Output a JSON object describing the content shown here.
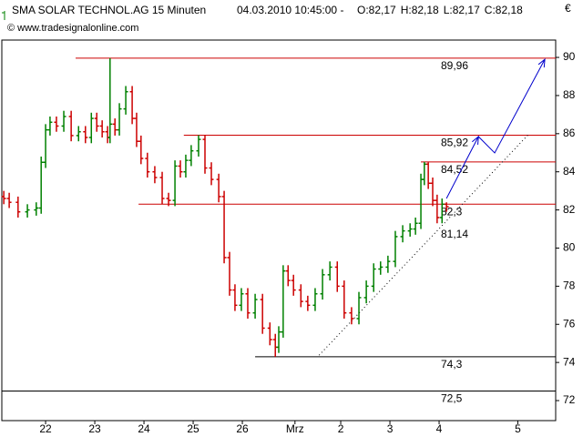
{
  "chart_data": {
    "type": "ohlc",
    "title": "SMA SOLAR TECHNOL.AG 15 Minuten",
    "timestamp": "04.03.2010 10:45:00 -",
    "quote": [
      {
        "text": "O:82,17",
        "color": "#cc0000"
      },
      {
        "text": "H:82,18",
        "color": "#000000"
      },
      {
        "text": "L:82,17",
        "color": "#000000"
      },
      {
        "text": "C:82,18",
        "color": "#cc0000"
      }
    ],
    "source": "© www.tradesignalonline.com",
    "currency": "€",
    "up_color": "#008000",
    "down_color": "#cc0000",
    "xlim": [
      -0.89,
      10.37
    ],
    "ylim": [
      70.95,
      90.91
    ],
    "yticks": [
      72,
      74,
      76,
      78,
      80,
      82,
      84,
      86,
      88,
      90
    ],
    "xticks": [
      {
        "value": 0,
        "label": "22"
      },
      {
        "value": 1,
        "label": "23"
      },
      {
        "value": 2,
        "label": "24"
      },
      {
        "value": 3,
        "label": "25"
      },
      {
        "value": 4,
        "label": "26"
      },
      {
        "value": 5.07,
        "label": "Mrz"
      },
      {
        "value": 6,
        "label": "2"
      },
      {
        "value": 7,
        "label": "3"
      },
      {
        "value": 8,
        "label": "4"
      },
      {
        "value": 9.6,
        "label": "5"
      }
    ],
    "x": [
      -0.85,
      -0.74,
      -0.56,
      -0.37,
      -0.19,
      -0.09,
      0,
      0.09,
      0.22,
      0.37,
      0.52,
      0.67,
      0.81,
      0.93,
      1.04,
      1.15,
      1.26,
      1.31,
      1.41,
      1.5,
      1.63,
      1.76,
      1.85,
      1.94,
      2.07,
      2.22,
      2.37,
      2.5,
      2.63,
      2.74,
      2.85,
      2.96,
      3.11,
      3.24,
      3.37,
      3.52,
      3.63,
      3.74,
      3.85,
      3.98,
      4.11,
      4.26,
      4.41,
      4.56,
      4.67,
      4.74,
      4.83,
      4.93,
      5.04,
      5.19,
      5.33,
      5.48,
      5.63,
      5.78,
      5.93,
      6.07,
      6.22,
      6.37,
      6.52,
      6.67,
      6.81,
      6.96,
      7.11,
      7.26,
      7.41,
      7.52,
      7.63,
      7.7,
      7.78,
      7.87,
      7.96,
      8.06,
      8.15
    ],
    "open": [
      82.7,
      82.6,
      82.4,
      81.9,
      82.0,
      82.1,
      84.5,
      86.2,
      86.6,
      86.4,
      86.9,
      85.9,
      86.1,
      85.8,
      86.8,
      86.4,
      86.1,
      85.8,
      86.5,
      86.2,
      87.3,
      88.2,
      86.8,
      85.6,
      84.7,
      84.0,
      83.7,
      82.6,
      82.5,
      84.3,
      84.0,
      84.6,
      85.1,
      85.7,
      84.2,
      83.6,
      82.7,
      79.5,
      77.8,
      77.0,
      77.6,
      76.6,
      77.3,
      75.8,
      75.2,
      74.8,
      75.6,
      78.8,
      78.3,
      77.8,
      77.2,
      77.0,
      77.6,
      78.6,
      79.0,
      78.0,
      76.6,
      76.3,
      77.4,
      78.0,
      78.9,
      79.0,
      79.3,
      80.6,
      80.9,
      81.0,
      81.3,
      83.6,
      84.4,
      83.4,
      82.5,
      81.6,
      82.3
    ],
    "high": [
      83.0,
      82.9,
      82.7,
      82.3,
      82.4,
      84.8,
      86.5,
      86.9,
      86.9,
      87.2,
      87.2,
      86.4,
      86.4,
      87.1,
      87.1,
      86.7,
      86.4,
      89.96,
      86.8,
      87.6,
      88.5,
      88.5,
      87.1,
      85.9,
      85.0,
      84.3,
      84.0,
      82.9,
      84.6,
      84.6,
      84.9,
      85.4,
      85.92,
      85.9,
      84.5,
      83.9,
      83.0,
      79.8,
      78.1,
      77.9,
      77.9,
      77.6,
      77.6,
      76.1,
      75.5,
      75.9,
      79.1,
      79.1,
      78.6,
      78.1,
      77.5,
      77.9,
      78.9,
      79.3,
      79.3,
      78.3,
      76.9,
      77.7,
      78.3,
      79.2,
      79.3,
      79.6,
      80.9,
      81.2,
      81.3,
      81.6,
      83.9,
      84.52,
      84.5,
      83.7,
      82.8,
      82.6,
      82.4
    ],
    "low": [
      82.3,
      82.1,
      81.6,
      81.6,
      81.7,
      81.8,
      84.2,
      85.9,
      86.1,
      86.1,
      85.6,
      85.6,
      85.5,
      85.5,
      86.1,
      85.8,
      85.5,
      85.5,
      85.9,
      85.9,
      87.0,
      86.5,
      85.3,
      84.4,
      83.7,
      83.4,
      82.3,
      82.2,
      82.2,
      83.7,
      83.7,
      84.3,
      84.8,
      83.9,
      83.3,
      82.4,
      79.2,
      77.5,
      76.7,
      76.7,
      76.3,
      76.3,
      75.5,
      74.9,
      74.3,
      74.5,
      75.3,
      78.0,
      77.5,
      76.9,
      76.7,
      76.7,
      77.3,
      78.3,
      77.7,
      76.3,
      76.0,
      76.0,
      77.1,
      77.7,
      78.6,
      78.7,
      79.0,
      80.3,
      80.6,
      80.7,
      81.0,
      83.3,
      83.1,
      82.2,
      81.3,
      81.3,
      81.9
    ],
    "close": [
      82.6,
      82.4,
      81.9,
      82.0,
      82.1,
      84.5,
      86.2,
      86.6,
      86.4,
      86.9,
      85.9,
      86.1,
      85.8,
      86.8,
      86.4,
      86.1,
      85.8,
      86.5,
      86.2,
      87.3,
      88.2,
      86.8,
      85.6,
      84.7,
      84.0,
      83.7,
      82.6,
      82.5,
      84.3,
      84.0,
      84.6,
      85.1,
      85.7,
      84.2,
      83.6,
      82.7,
      79.5,
      77.8,
      77.0,
      77.6,
      76.6,
      77.3,
      75.8,
      75.2,
      74.8,
      75.6,
      78.8,
      78.3,
      77.8,
      77.2,
      77.0,
      77.6,
      78.6,
      79.0,
      78.0,
      76.6,
      76.3,
      77.4,
      78.0,
      78.9,
      79.0,
      79.3,
      80.6,
      80.9,
      81.0,
      81.3,
      83.6,
      84.4,
      83.4,
      82.5,
      81.6,
      82.3,
      82.17
    ],
    "levels": [
      {
        "value": 89.96,
        "label": "89,96",
        "color": "#cc0000",
        "start": 0.61,
        "line": true
      },
      {
        "value": 85.92,
        "label": "85,92",
        "color": "#cc0000",
        "start": 2.81,
        "line": true
      },
      {
        "value": 84.52,
        "label": "84,52",
        "color": "#cc0000",
        "start": 7.63,
        "line": true
      },
      {
        "value": 82.3,
        "label": "82,3",
        "color": "#cc0000",
        "start": 1.89,
        "line": true
      },
      {
        "value": 81.14,
        "label": "81,14",
        "color": "#000000",
        "start": 7.63,
        "line": false
      },
      {
        "value": 74.3,
        "label": "74,3",
        "color": "#000000",
        "start": 4.26,
        "line": true
      },
      {
        "value": 72.5,
        "label": "72,5",
        "color": "#000000",
        "start": -0.89,
        "line": true
      }
    ],
    "trendline": {
      "x": [
        5.56,
        9.81
      ],
      "y": [
        74.38,
        85.94
      ],
      "color": "#000000"
    },
    "forecast": {
      "x": [
        8.15,
        8.8,
        9.13,
        10.15
      ],
      "y": [
        82.6,
        85.85,
        84.99,
        89.9
      ],
      "color": "#0000cc"
    }
  }
}
